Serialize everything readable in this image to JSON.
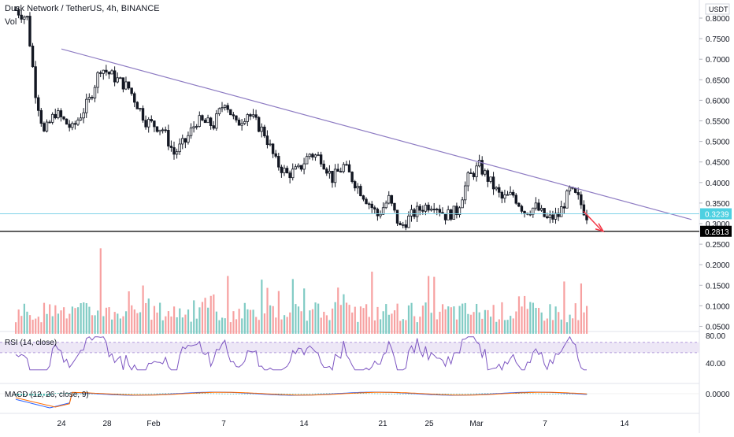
{
  "header": {
    "symbol_title": "Dusk Network / TetherUS, 4h, BINANCE",
    "volume_label": "Vol"
  },
  "price_axis": {
    "currency": "USDT",
    "ticks": [
      "0.8000",
      "0.7500",
      "0.7000",
      "0.6500",
      "0.6000",
      "0.5500",
      "0.5000",
      "0.4500",
      "0.4000",
      "0.3500",
      "0.3000",
      "0.2500",
      "0.2000",
      "0.1500",
      "0.1000",
      "0.0500"
    ],
    "last_price": "0.3239",
    "marked_level": "0.2813"
  },
  "time_axis": {
    "ticks": [
      "24",
      "28",
      "Feb",
      "7",
      "14",
      "21",
      "25",
      "Mar",
      "7",
      "14"
    ]
  },
  "rsi": {
    "label": "RSI (14, close)",
    "ticks": [
      "80.00",
      "40.00"
    ]
  },
  "macd": {
    "label": "MACD (12, 26, close, 9)",
    "ticks": [
      "0.0000"
    ]
  },
  "colors": {
    "candle": "#131722",
    "trendline": "#8e7cc3",
    "last_price_line": "#7fd3e8",
    "last_price_badge": "#4dd0e1",
    "level_line": "#000000",
    "arrow": "#f23645",
    "vol_up": "#80cbc4",
    "vol_down": "#f7a1a1",
    "rsi_line": "#7e57c2",
    "rsi_band": "#ede7f6",
    "macd_line": "#2962ff",
    "signal_line": "#ff6d00",
    "hist": "#26a69a"
  },
  "chart_data": {
    "type": "candlestick",
    "price_range": [
      0.23,
      0.83
    ],
    "price_path": [
      {
        "t": 0,
        "v": 0.82
      },
      {
        "t": 4,
        "v": 0.8
      },
      {
        "t": 7,
        "v": 0.62
      },
      {
        "t": 10,
        "v": 0.52
      },
      {
        "t": 14,
        "v": 0.57
      },
      {
        "t": 20,
        "v": 0.53
      },
      {
        "t": 26,
        "v": 0.6
      },
      {
        "t": 30,
        "v": 0.68
      },
      {
        "t": 34,
        "v": 0.66
      },
      {
        "t": 40,
        "v": 0.63
      },
      {
        "t": 46,
        "v": 0.55
      },
      {
        "t": 52,
        "v": 0.53
      },
      {
        "t": 56,
        "v": 0.47
      },
      {
        "t": 60,
        "v": 0.5
      },
      {
        "t": 64,
        "v": 0.55
      },
      {
        "t": 70,
        "v": 0.54
      },
      {
        "t": 74,
        "v": 0.6
      },
      {
        "t": 78,
        "v": 0.54
      },
      {
        "t": 82,
        "v": 0.57
      },
      {
        "t": 88,
        "v": 0.52
      },
      {
        "t": 92,
        "v": 0.45
      },
      {
        "t": 96,
        "v": 0.42
      },
      {
        "t": 100,
        "v": 0.43
      },
      {
        "t": 104,
        "v": 0.47
      },
      {
        "t": 108,
        "v": 0.46
      },
      {
        "t": 112,
        "v": 0.41
      },
      {
        "t": 116,
        "v": 0.44
      },
      {
        "t": 120,
        "v": 0.4
      },
      {
        "t": 124,
        "v": 0.36
      },
      {
        "t": 128,
        "v": 0.32
      },
      {
        "t": 132,
        "v": 0.36
      },
      {
        "t": 136,
        "v": 0.29
      },
      {
        "t": 140,
        "v": 0.32
      },
      {
        "t": 144,
        "v": 0.34
      },
      {
        "t": 148,
        "v": 0.35
      },
      {
        "t": 152,
        "v": 0.32
      },
      {
        "t": 156,
        "v": 0.33
      },
      {
        "t": 160,
        "v": 0.41
      },
      {
        "t": 164,
        "v": 0.44
      },
      {
        "t": 168,
        "v": 0.4
      },
      {
        "t": 172,
        "v": 0.36
      },
      {
        "t": 176,
        "v": 0.37
      },
      {
        "t": 180,
        "v": 0.33
      },
      {
        "t": 184,
        "v": 0.34
      },
      {
        "t": 188,
        "v": 0.31
      },
      {
        "t": 192,
        "v": 0.32
      },
      {
        "t": 196,
        "v": 0.38
      },
      {
        "t": 199,
        "v": 0.36
      },
      {
        "t": 202,
        "v": 0.32
      }
    ],
    "trendline": [
      {
        "t": 0,
        "v": 0.725
      },
      {
        "t": 1,
        "v": 0.31
      }
    ],
    "last_price": 0.3239,
    "marked_level": 0.2813,
    "volume_range": [
      0.03,
      0.28
    ],
    "rsi_range": [
      0,
      100
    ],
    "rsi_band": [
      55,
      70
    ],
    "macd_zero": 0.0
  }
}
